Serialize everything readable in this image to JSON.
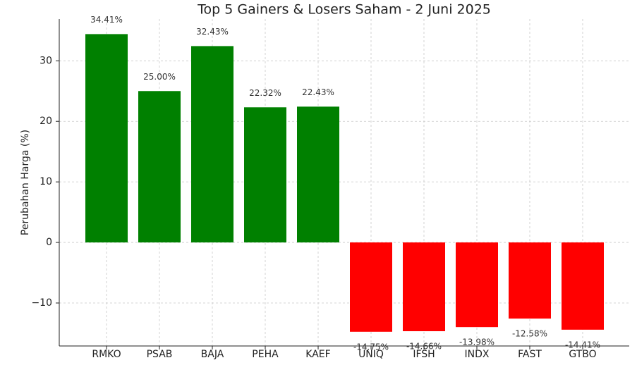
{
  "chart_data": {
    "type": "bar",
    "title": "Top 5 Gainers & Losers Saham - 2 Juni 2025",
    "y_label": "Perubahan Harga (%)",
    "categories": [
      "RMKO",
      "PSAB",
      "BAJA",
      "PEHA",
      "KAEF",
      "UNIQ",
      "IFSH",
      "INDX",
      "FAST",
      "GTBO"
    ],
    "values": [
      34.41,
      25.0,
      32.43,
      22.32,
      22.43,
      -14.75,
      -14.66,
      -13.98,
      -12.58,
      -14.41
    ],
    "value_labels": [
      "34.41%",
      "25.00%",
      "32.43%",
      "22.32%",
      "22.43%",
      "-14.75%",
      "-14.66%",
      "-13.98%",
      "-12.58%",
      "-14.41%"
    ],
    "colors": [
      "#008000",
      "#008000",
      "#008000",
      "#008000",
      "#008000",
      "#ff0000",
      "#ff0000",
      "#ff0000",
      "#ff0000",
      "#ff0000"
    ],
    "ylim": [
      -17.1,
      36.9
    ],
    "yticks": [
      {
        "value": -10,
        "label": "−10"
      },
      0,
      10,
      20,
      30
    ],
    "grid": true
  }
}
